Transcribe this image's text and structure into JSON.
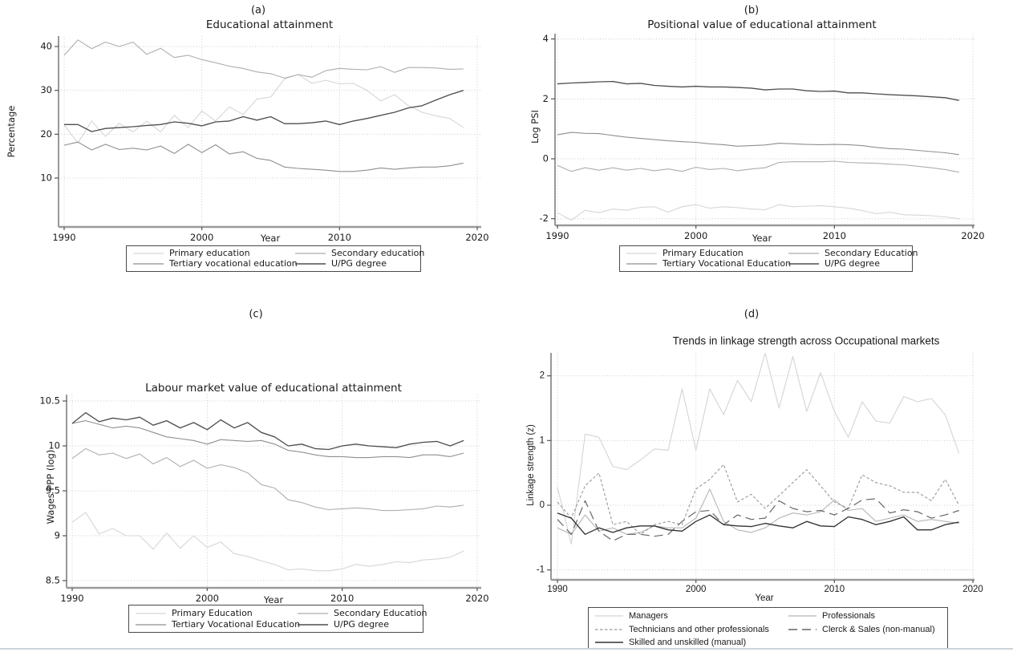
{
  "page": {
    "divider_color": "#ccd5dc",
    "background": "#ffffff"
  },
  "chart_data": [
    {
      "id": "a",
      "type": "line",
      "panel_tag": "(a)",
      "title": "Educational attainment",
      "xlabel": "Year",
      "ylabel": "Percentage",
      "x": [
        1990,
        1991,
        1992,
        1993,
        1994,
        1995,
        1996,
        1997,
        1998,
        1999,
        2000,
        2001,
        2002,
        2003,
        2004,
        2005,
        2006,
        2007,
        2008,
        2009,
        2010,
        2011,
        2012,
        2013,
        2014,
        2015,
        2016,
        2017,
        2018,
        2019
      ],
      "xticks": [
        1990,
        2000,
        2010,
        2020
      ],
      "yticks": [
        10,
        20,
        30,
        40
      ],
      "xlim": [
        1989.5,
        2020.3
      ],
      "ylim": [
        -1,
        42.5
      ],
      "grid": true,
      "legend_position": "below",
      "series": [
        {
          "name": "Primary education",
          "color": "#d6d6d6",
          "dash": null,
          "width": 1.1,
          "values": [
            22.1,
            18,
            23,
            19.5,
            22.5,
            20.5,
            23,
            20.5,
            24.3,
            21.5,
            25.3,
            23,
            26.2,
            24.5,
            28,
            28.5,
            32.6,
            33.6,
            31.6,
            32.3,
            31.5,
            31.6,
            30,
            27.6,
            29,
            26.5,
            25,
            24.2,
            23.6,
            21.5
          ]
        },
        {
          "name": "Secondary education",
          "color": "#aeaeae",
          "dash": null,
          "width": 1.1,
          "values": [
            38,
            41.5,
            39.5,
            41,
            40,
            41,
            38.2,
            39.6,
            37.5,
            38,
            37,
            36.3,
            35.5,
            35,
            34.2,
            33.8,
            32.8,
            33.6,
            33,
            34.5,
            35,
            34.8,
            34.7,
            35.4,
            34.1,
            35.2,
            35.2,
            35.1,
            34.8,
            34.9
          ]
        },
        {
          "name": "Tertiary vocational education",
          "color": "#8f8f8f",
          "dash": null,
          "width": 1.1,
          "values": [
            17.5,
            18.2,
            16.4,
            17.7,
            16.5,
            16.8,
            16.4,
            17.3,
            15.6,
            17.7,
            15.8,
            17.6,
            15.5,
            16,
            14.5,
            14,
            12.5,
            12.2,
            12,
            11.8,
            11.5,
            11.5,
            11.8,
            12.3,
            12,
            12.3,
            12.5,
            12.5,
            12.8,
            13.4
          ]
        },
        {
          "name": "U/PG degree",
          "color": "#4f4f4f",
          "dash": null,
          "width": 1.35,
          "values": [
            22.2,
            22.2,
            20.6,
            21.3,
            21.5,
            21.7,
            22,
            22.2,
            22.8,
            22.5,
            21.9,
            22.8,
            23,
            24,
            23.2,
            24,
            22.4,
            22.4,
            22.6,
            23,
            22.2,
            23,
            23.6,
            24.3,
            25,
            26,
            26.5,
            27.8,
            29,
            30
          ]
        }
      ]
    },
    {
      "id": "b",
      "type": "line",
      "panel_tag": "(b)",
      "title": "Positional value of educational attainment",
      "xlabel": "Year",
      "ylabel": "Log PSI",
      "x": [
        1990,
        1991,
        1992,
        1993,
        1994,
        1995,
        1996,
        1997,
        1998,
        1999,
        2000,
        2001,
        2002,
        2003,
        2004,
        2005,
        2006,
        2007,
        2008,
        2009,
        2010,
        2011,
        2012,
        2013,
        2014,
        2015,
        2016,
        2017,
        2018,
        2019
      ],
      "xticks": [
        1990,
        2000,
        2010,
        2020
      ],
      "yticks": [
        -2,
        0,
        2,
        4
      ],
      "xlim": [
        1989.5,
        2020.3
      ],
      "ylim": [
        -2.25,
        4.2
      ],
      "grid": true,
      "legend_position": "below",
      "series": [
        {
          "name": "Primary Education",
          "color": "#d6d6d6",
          "dash": null,
          "width": 1.1,
          "values": [
            -1.8,
            -2.05,
            -1.72,
            -1.8,
            -1.68,
            -1.72,
            -1.62,
            -1.6,
            -1.78,
            -1.6,
            -1.53,
            -1.65,
            -1.6,
            -1.63,
            -1.68,
            -1.7,
            -1.53,
            -1.6,
            -1.58,
            -1.57,
            -1.6,
            -1.65,
            -1.73,
            -1.83,
            -1.78,
            -1.87,
            -1.88,
            -1.9,
            -1.94,
            -2.0
          ]
        },
        {
          "name": "Secondary Education",
          "color": "#aeaeae",
          "dash": null,
          "width": 1.1,
          "values": [
            -0.22,
            -0.42,
            -0.3,
            -0.38,
            -0.3,
            -0.38,
            -0.32,
            -0.4,
            -0.34,
            -0.42,
            -0.28,
            -0.36,
            -0.32,
            -0.4,
            -0.34,
            -0.3,
            -0.12,
            -0.1,
            -0.1,
            -0.1,
            -0.08,
            -0.12,
            -0.14,
            -0.15,
            -0.18,
            -0.2,
            -0.25,
            -0.3,
            -0.36,
            -0.45
          ]
        },
        {
          "name": "Tertiary Vocational Education",
          "color": "#8f8f8f",
          "dash": null,
          "width": 1.1,
          "values": [
            0.8,
            0.88,
            0.85,
            0.84,
            0.78,
            0.72,
            0.68,
            0.64,
            0.6,
            0.57,
            0.55,
            0.5,
            0.47,
            0.42,
            0.44,
            0.46,
            0.52,
            0.5,
            0.48,
            0.47,
            0.48,
            0.47,
            0.44,
            0.38,
            0.34,
            0.32,
            0.28,
            0.24,
            0.2,
            0.14
          ]
        },
        {
          "name": "U/PG degree",
          "color": "#4f4f4f",
          "dash": null,
          "width": 1.35,
          "values": [
            2.5,
            2.53,
            2.55,
            2.57,
            2.58,
            2.5,
            2.52,
            2.45,
            2.42,
            2.4,
            2.42,
            2.4,
            2.4,
            2.38,
            2.36,
            2.3,
            2.33,
            2.33,
            2.27,
            2.25,
            2.26,
            2.2,
            2.2,
            2.17,
            2.14,
            2.12,
            2.1,
            2.07,
            2.04,
            1.95
          ]
        }
      ]
    },
    {
      "id": "c",
      "type": "line",
      "panel_tag": "(c)",
      "title": "Labour market value of educational attainment",
      "xlabel": "Year",
      "ylabel": "Wages PPP (log)",
      "x": [
        1990,
        1991,
        1992,
        1993,
        1994,
        1995,
        1996,
        1997,
        1998,
        1999,
        2000,
        2001,
        2002,
        2003,
        2004,
        2005,
        2006,
        2007,
        2008,
        2009,
        2010,
        2011,
        2012,
        2013,
        2014,
        2015,
        2016,
        2017,
        2018,
        2019
      ],
      "xticks": [
        1990,
        2000,
        2010,
        2020
      ],
      "yticks": [
        8.5,
        9,
        9.5,
        10,
        10.5
      ],
      "xlim": [
        1989.5,
        2020.3
      ],
      "ylim": [
        8.42,
        10.56
      ],
      "grid": true,
      "legend_position": "below",
      "series": [
        {
          "name": "Primary Education",
          "color": "#d6d6d6",
          "dash": null,
          "width": 1.1,
          "values": [
            9.15,
            9.26,
            9.02,
            9.08,
            9.0,
            9.0,
            8.85,
            9.03,
            8.86,
            9.0,
            8.87,
            8.93,
            8.8,
            8.77,
            8.72,
            8.68,
            8.62,
            8.63,
            8.61,
            8.61,
            8.63,
            8.68,
            8.66,
            8.68,
            8.71,
            8.7,
            8.73,
            8.74,
            8.76,
            8.83
          ]
        },
        {
          "name": "Secondary Education",
          "color": "#aeaeae",
          "dash": null,
          "width": 1.1,
          "values": [
            9.86,
            9.97,
            9.9,
            9.92,
            9.86,
            9.91,
            9.8,
            9.87,
            9.77,
            9.84,
            9.75,
            9.79,
            9.76,
            9.7,
            9.57,
            9.53,
            9.4,
            9.37,
            9.32,
            9.29,
            9.3,
            9.31,
            9.3,
            9.28,
            9.28,
            9.29,
            9.3,
            9.33,
            9.32,
            9.34
          ]
        },
        {
          "name": "Tertiary Vocational Education",
          "color": "#8f8f8f",
          "dash": null,
          "width": 1.1,
          "values": [
            10.25,
            10.28,
            10.24,
            10.2,
            10.22,
            10.2,
            10.15,
            10.1,
            10.08,
            10.06,
            10.02,
            10.07,
            10.06,
            10.05,
            10.06,
            10.02,
            9.95,
            9.93,
            9.9,
            9.88,
            9.88,
            9.87,
            9.87,
            9.88,
            9.88,
            9.87,
            9.9,
            9.9,
            9.88,
            9.92
          ]
        },
        {
          "name": "U/PG degree",
          "color": "#4f4f4f",
          "dash": null,
          "width": 1.35,
          "values": [
            10.25,
            10.37,
            10.27,
            10.31,
            10.29,
            10.32,
            10.23,
            10.28,
            10.2,
            10.26,
            10.18,
            10.29,
            10.2,
            10.26,
            10.15,
            10.1,
            10.0,
            10.02,
            9.97,
            9.96,
            10.0,
            10.02,
            10.0,
            9.99,
            9.98,
            10.02,
            10.04,
            10.05,
            10.0,
            10.06
          ]
        }
      ]
    },
    {
      "id": "d",
      "type": "line",
      "panel_tag": "(d)",
      "title": "Trends in linkage strength across Occupational markets",
      "xlabel": "Year",
      "ylabel": "Linkage strength (z)",
      "x": [
        1990,
        1991,
        1992,
        1993,
        1994,
        1995,
        1996,
        1997,
        1998,
        1999,
        2000,
        2001,
        2002,
        2003,
        2004,
        2005,
        2006,
        2007,
        2008,
        2009,
        2010,
        2011,
        2012,
        2013,
        2014,
        2015,
        2016,
        2017,
        2018,
        2019
      ],
      "xticks": [
        1990,
        2000,
        2010,
        2020
      ],
      "yticks": [
        -1,
        0,
        1,
        2
      ],
      "xlim": [
        1989.5,
        2020.3
      ],
      "ylim": [
        -1.15,
        2.36
      ],
      "grid": true,
      "legend_position": "below",
      "series": [
        {
          "name": "Managers",
          "color": "#d4d4d4",
          "dash": null,
          "width": 1.1,
          "values": [
            0.28,
            -0.6,
            1.1,
            1.05,
            0.6,
            0.55,
            0.7,
            0.87,
            0.85,
            1.8,
            0.85,
            1.8,
            1.4,
            1.93,
            1.6,
            2.35,
            1.5,
            2.3,
            1.45,
            2.05,
            1.45,
            1.05,
            1.6,
            1.3,
            1.27,
            1.68,
            1.6,
            1.65,
            1.4,
            0.8
          ]
        },
        {
          "name": "Professionals",
          "color": "#b5b5b5",
          "dash": null,
          "width": 1.1,
          "values": [
            -0.35,
            -0.45,
            -0.15,
            -0.4,
            -0.35,
            -0.45,
            -0.42,
            -0.32,
            -0.35,
            -0.35,
            -0.2,
            0.25,
            -0.25,
            -0.38,
            -0.42,
            -0.35,
            -0.2,
            -0.12,
            -0.15,
            -0.1,
            0.08,
            -0.08,
            -0.05,
            -0.25,
            -0.2,
            -0.15,
            -0.25,
            -0.22,
            -0.25,
            -0.28
          ]
        },
        {
          "name": "Technicians and other professionals",
          "color": "#999999",
          "dash": "3.5 2.5",
          "width": 1.1,
          "values": [
            0.05,
            -0.2,
            0.3,
            0.5,
            -0.3,
            -0.25,
            -0.45,
            -0.3,
            -0.25,
            -0.3,
            0.25,
            0.4,
            0.63,
            0.05,
            0.17,
            -0.05,
            0.15,
            0.35,
            0.55,
            0.3,
            0.05,
            -0.05,
            0.47,
            0.35,
            0.3,
            0.2,
            0.2,
            0.07,
            0.4,
            0.0
          ]
        },
        {
          "name": "Clerck & Sales (non-manual)",
          "color": "#666666",
          "dash": "11 6",
          "width": 1.2,
          "values": [
            -0.22,
            -0.45,
            0.07,
            -0.4,
            -0.55,
            -0.45,
            -0.45,
            -0.48,
            -0.45,
            -0.25,
            -0.1,
            -0.08,
            -0.3,
            -0.15,
            -0.22,
            -0.2,
            0.07,
            -0.05,
            -0.1,
            -0.08,
            -0.15,
            -0.05,
            0.08,
            0.1,
            -0.12,
            -0.07,
            -0.1,
            -0.2,
            -0.15,
            -0.08
          ]
        },
        {
          "name": "Skilled and unskilled (manual)",
          "color": "#333333",
          "dash": null,
          "width": 1.35,
          "values": [
            -0.12,
            -0.2,
            -0.45,
            -0.35,
            -0.42,
            -0.35,
            -0.32,
            -0.32,
            -0.38,
            -0.4,
            -0.25,
            -0.15,
            -0.3,
            -0.32,
            -0.33,
            -0.28,
            -0.32,
            -0.35,
            -0.25,
            -0.32,
            -0.33,
            -0.18,
            -0.22,
            -0.3,
            -0.25,
            -0.18,
            -0.38,
            -0.38,
            -0.3,
            -0.26
          ]
        }
      ]
    }
  ]
}
